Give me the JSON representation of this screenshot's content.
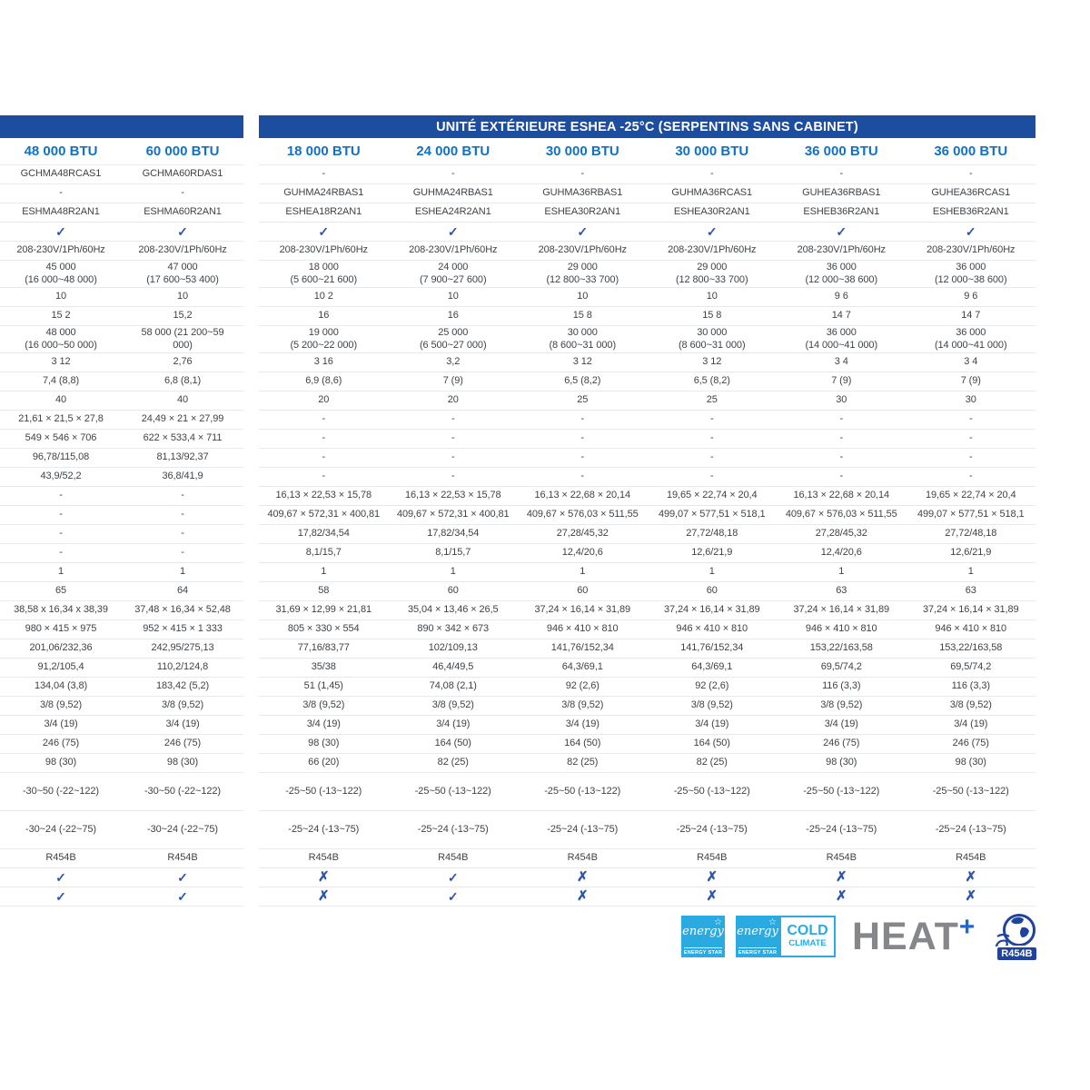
{
  "title": "UNITÉ EXTÉRIEURE ESHEA -25°C (SERPENTINS SANS CABINET)",
  "columns": [
    "48 000 BTU",
    "60 000 BTU",
    "18 000 BTU",
    "24 000 BTU",
    "30 000 BTU",
    "30 000 BTU",
    "36 000 BTU",
    "36 000 BTU"
  ],
  "rows": [
    {
      "cells": [
        "GCHMA48RCAS1",
        "GCHMA60RDAS1",
        "-",
        "-",
        "-",
        "-",
        "-",
        "-"
      ]
    },
    {
      "cells": [
        "-",
        "-",
        "GUHMA24RBAS1",
        "GUHMA24RBAS1",
        "GUHMA36RBAS1",
        "GUHMA36RCAS1",
        "GUHEA36RBAS1",
        "GUHEA36RCAS1"
      ]
    },
    {
      "cells": [
        "ESHMA48R2AN1",
        "ESHMA60R2AN1",
        "ESHEA18R2AN1",
        "ESHEA24R2AN1",
        "ESHEA30R2AN1",
        "ESHEA30R2AN1",
        "ESHEB36R2AN1",
        "ESHEB36R2AN1"
      ]
    },
    {
      "cells": [
        "✓",
        "✓",
        "✓",
        "✓",
        "✓",
        "✓",
        "✓",
        "✓"
      ]
    },
    {
      "cells": [
        "208-230V/1Ph/60Hz",
        "208-230V/1Ph/60Hz",
        "208-230V/1Ph/60Hz",
        "208-230V/1Ph/60Hz",
        "208-230V/1Ph/60Hz",
        "208-230V/1Ph/60Hz",
        "208-230V/1Ph/60Hz",
        "208-230V/1Ph/60Hz"
      ]
    },
    {
      "h": "m",
      "cells": [
        "45 000\n(16 000~48 000)",
        "47 000\n(17 600~53 400)",
        "18 000\n(5 600~21 600)",
        "24 000\n(7 900~27 600)",
        "29 000\n(12 800~33 700)",
        "29 000\n(12 800~33 700)",
        "36 000\n(12 000~38 600)",
        "36 000\n(12 000~38 600)"
      ]
    },
    {
      "cells": [
        "10",
        "10",
        "10 2",
        "10",
        "10",
        "10",
        "9 6",
        "9 6"
      ]
    },
    {
      "cells": [
        "15 2",
        "15,2",
        "16",
        "16",
        "15 8",
        "15 8",
        "14 7",
        "14 7"
      ]
    },
    {
      "h": "m",
      "cells": [
        "48 000\n(16 000~50 000)",
        "58 000 (21 200~59\n000)",
        "19 000\n(5 200~22 000)",
        "25 000\n(6 500~27 000)",
        "30 000\n(8 600~31 000)",
        "30 000\n(8 600~31 000)",
        "36 000\n(14 000~41 000)",
        "36 000\n(14 000~41 000)"
      ]
    },
    {
      "cells": [
        "3 12",
        "2,76",
        "3 16",
        "3,2",
        "3 12",
        "3 12",
        "3 4",
        "3 4"
      ]
    },
    {
      "cells": [
        "7,4 (8,8)",
        "6,8 (8,1)",
        "6,9 (8,6)",
        "7 (9)",
        "6,5 (8,2)",
        "6,5 (8,2)",
        "7 (9)",
        "7 (9)"
      ]
    },
    {
      "cells": [
        "40",
        "40",
        "20",
        "20",
        "25",
        "25",
        "30",
        "30"
      ]
    },
    {
      "cells": [
        "21,61 × 21,5 × 27,8",
        "24,49 × 21 × 27,99",
        "-",
        "-",
        "-",
        "-",
        "-",
        "-"
      ]
    },
    {
      "cells": [
        "549 × 546 × 706",
        "622 × 533,4 × 711",
        "-",
        "-",
        "-",
        "-",
        "-",
        "-"
      ]
    },
    {
      "cells": [
        "96,78/115,08",
        "81,13/92,37",
        "-",
        "-",
        "-",
        "-",
        "-",
        "-"
      ]
    },
    {
      "cells": [
        "43,9/52,2",
        "36,8/41,9",
        "-",
        "-",
        "-",
        "-",
        "-",
        "-"
      ]
    },
    {
      "cells": [
        "-",
        "-",
        "16,13 × 22,53 × 15,78",
        "16,13 × 22,53 × 15,78",
        "16,13 × 22,68 × 20,14",
        "19,65 × 22,74 × 20,4",
        "16,13 × 22,68 × 20,14",
        "19,65 × 22,74 × 20,4"
      ]
    },
    {
      "cells": [
        "-",
        "-",
        "409,67 × 572,31 × 400,81",
        "409,67 × 572,31 × 400,81",
        "409,67 × 576,03 × 511,55",
        "499,07 × 577,51 × 518,1",
        "409,67 × 576,03 × 511,55",
        "499,07 × 577,51 × 518,1"
      ]
    },
    {
      "cells": [
        "-",
        "-",
        "17,82/34,54",
        "17,82/34,54",
        "27,28/45,32",
        "27,72/48,18",
        "27,28/45,32",
        "27,72/48,18"
      ]
    },
    {
      "cells": [
        "-",
        "-",
        "8,1/15,7",
        "8,1/15,7",
        "12,4/20,6",
        "12,6/21,9",
        "12,4/20,6",
        "12,6/21,9"
      ]
    },
    {
      "cells": [
        "1",
        "1",
        "1",
        "1",
        "1",
        "1",
        "1",
        "1"
      ]
    },
    {
      "cells": [
        "65",
        "64",
        "58",
        "60",
        "60",
        "60",
        "63",
        "63"
      ]
    },
    {
      "cells": [
        "38,58 x 16,34 x 38,39",
        "37,48 × 16,34 × 52,48",
        "31,69 × 12,99 × 21,81",
        "35,04 × 13,46 × 26,5",
        "37,24 × 16,14 × 31,89",
        "37,24 × 16,14 × 31,89",
        "37,24 × 16,14 × 31,89",
        "37,24 × 16,14 × 31,89"
      ]
    },
    {
      "cells": [
        "980 × 415 × 975",
        "952 × 415 × 1 333",
        "805 × 330 × 554",
        "890 × 342 × 673",
        "946 × 410 × 810",
        "946 × 410 × 810",
        "946 × 410 × 810",
        "946 × 410 × 810"
      ]
    },
    {
      "cells": [
        "201,06/232,36",
        "242,95/275,13",
        "77,16/83,77",
        "102/109,13",
        "141,76/152,34",
        "141,76/152,34",
        "153,22/163,58",
        "153,22/163,58"
      ]
    },
    {
      "cells": [
        "91,2/105,4",
        "110,2/124,8",
        "35/38",
        "46,4/49,5",
        "64,3/69,1",
        "64,3/69,1",
        "69,5/74,2",
        "69,5/74,2"
      ]
    },
    {
      "cells": [
        "134,04 (3,8)",
        "183,42 (5,2)",
        "51 (1,45)",
        "74,08 (2,1)",
        "92 (2,6)",
        "92 (2,6)",
        "116 (3,3)",
        "116 (3,3)"
      ]
    },
    {
      "cells": [
        "3/8 (9,52)",
        "3/8 (9,52)",
        "3/8 (9,52)",
        "3/8 (9,52)",
        "3/8 (9,52)",
        "3/8 (9,52)",
        "3/8 (9,52)",
        "3/8 (9,52)"
      ]
    },
    {
      "cells": [
        "3/4 (19)",
        "3/4 (19)",
        "3/4 (19)",
        "3/4 (19)",
        "3/4 (19)",
        "3/4 (19)",
        "3/4 (19)",
        "3/4 (19)"
      ]
    },
    {
      "cells": [
        "246 (75)",
        "246 (75)",
        "98 (30)",
        "164 (50)",
        "164 (50)",
        "164 (50)",
        "246 (75)",
        "246 (75)"
      ]
    },
    {
      "cells": [
        "98 (30)",
        "98 (30)",
        "66 (20)",
        "82 (25)",
        "82 (25)",
        "82 (25)",
        "98 (30)",
        "98 (30)"
      ]
    },
    {
      "h": "l",
      "cells": [
        "-30~50 (-22~122)",
        "-30~50 (-22~122)",
        "-25~50 (-13~122)",
        "-25~50 (-13~122)",
        "-25~50 (-13~122)",
        "-25~50 (-13~122)",
        "-25~50 (-13~122)",
        "-25~50 (-13~122)"
      ]
    },
    {
      "h": "l",
      "cells": [
        "-30~24 (-22~75)",
        "-30~24 (-22~75)",
        "-25~24 (-13~75)",
        "-25~24 (-13~75)",
        "-25~24 (-13~75)",
        "-25~24 (-13~75)",
        "-25~24 (-13~75)",
        "-25~24 (-13~75)"
      ]
    },
    {
      "cells": [
        "R454B",
        "R454B",
        "R454B",
        "R454B",
        "R454B",
        "R454B",
        "R454B",
        "R454B"
      ]
    },
    {
      "cells": [
        "✓",
        "✓",
        "✗",
        "✓",
        "✗",
        "✗",
        "✗",
        "✗"
      ]
    },
    {
      "cells": [
        "✓",
        "✓",
        "✗",
        "✓",
        "✗",
        "✗",
        "✗",
        "✗"
      ]
    }
  ],
  "footer": {
    "energy_script": "energy",
    "energy_star_label": "ENERGY STAR",
    "cold_line1": "COLD",
    "cold_line2": "CLIMATE",
    "heat_text": "HEAT",
    "heat_plus": "+",
    "refrigerant_badge": "R454B"
  },
  "colors": {
    "header_bar": "#1d4d9f",
    "btu_text": "#1171c6",
    "mark_blue": "#2d55b0",
    "body_text": "#3f4347",
    "row_border": "#e7e9ed",
    "energy_star_cyan": "#29abe2",
    "heat_gray": "#85878a",
    "globe_navy": "#20449c"
  }
}
